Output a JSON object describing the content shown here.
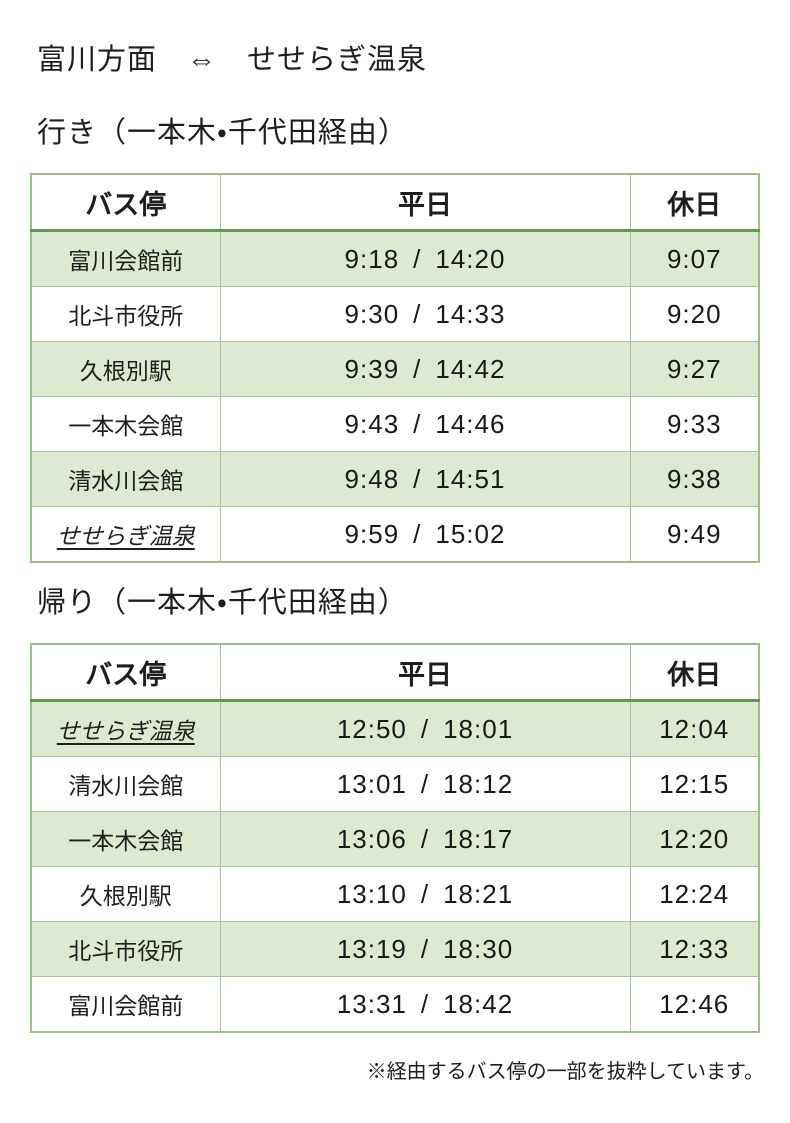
{
  "title": "富川方面　⇔　せせらぎ温泉",
  "colors": {
    "row_stripe_green": "#dde9d1",
    "grid_line_green": "#a6c596",
    "outer_border_green": "#9cbe8b",
    "header_underline_green": "#5e9c49",
    "text": "#1e1e1e"
  },
  "outbound": {
    "heading": "行き（一本木・千代田経由）",
    "columns": [
      "バス停",
      "平日",
      "休日"
    ],
    "rows": [
      {
        "stop": "富川会館前",
        "weekday": "9:18 / 14:20",
        "holiday": "9:07"
      },
      {
        "stop": "北斗市役所",
        "weekday": "9:30 / 14:33",
        "holiday": "9:20"
      },
      {
        "stop": "久根別駅",
        "weekday": "9:39 / 14:42",
        "holiday": "9:27"
      },
      {
        "stop": "一本木会館",
        "weekday": "9:43 / 14:46",
        "holiday": "9:33"
      },
      {
        "stop": "清水川会館",
        "weekday": "9:48 / 14:51",
        "holiday": "9:38"
      },
      {
        "stop": "せせらぎ温泉",
        "weekday": "9:59 / 15:02",
        "holiday": "9:49"
      }
    ]
  },
  "inbound": {
    "heading": "帰り（一本木・千代田経由）",
    "columns": [
      "バス停",
      "平日",
      "休日"
    ],
    "rows": [
      {
        "stop": "せせらぎ温泉",
        "weekday": "12:50 / 18:01",
        "holiday": "12:04"
      },
      {
        "stop": "清水川会館",
        "weekday": "13:01 / 18:12",
        "holiday": "12:15"
      },
      {
        "stop": "一本木会館",
        "weekday": "13:06 / 18:17",
        "holiday": "12:20"
      },
      {
        "stop": "久根別駅",
        "weekday": "13:10 / 18:21",
        "holiday": "12:24"
      },
      {
        "stop": "北斗市役所",
        "weekday": "13:19 / 18:30",
        "holiday": "12:33"
      },
      {
        "stop": "富川会館前",
        "weekday": "13:31 / 18:42",
        "holiday": "12:46"
      }
    ]
  },
  "footnote": "※経由するバス停の一部を抜粋しています。"
}
